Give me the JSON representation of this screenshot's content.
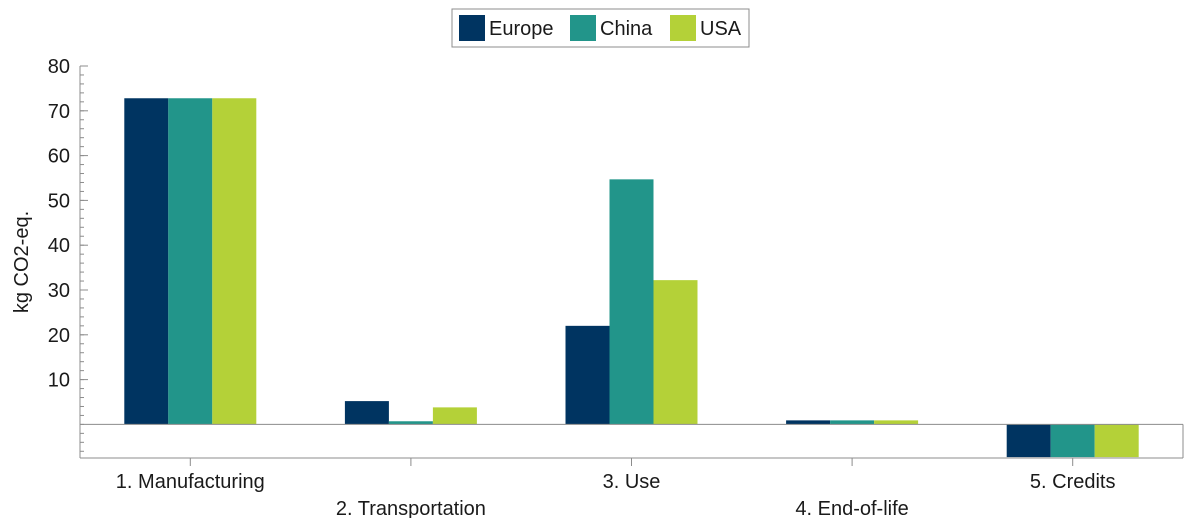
{
  "chart_data": {
    "type": "bar",
    "title": "",
    "xlabel": "",
    "ylabel": "kg CO2-eq.",
    "ylim": [
      -7.5,
      80
    ],
    "yticks": [
      10,
      20,
      30,
      40,
      50,
      60,
      70,
      80
    ],
    "grid": false,
    "legend_position": "top-center",
    "categories": [
      "1. Manufacturing",
      "2. Transportation",
      "3. Use",
      "4. End-of-life",
      "5. Credits"
    ],
    "series": [
      {
        "name": "Europe",
        "color": "#003461",
        "values": [
          72.8,
          5.2,
          22.0,
          0.9,
          -7.3
        ]
      },
      {
        "name": "China",
        "color": "#22958a",
        "values": [
          72.8,
          0.7,
          54.7,
          0.9,
          -7.3
        ]
      },
      {
        "name": "USA",
        "color": "#b4d138",
        "values": [
          72.8,
          3.8,
          32.2,
          0.9,
          -7.3
        ]
      }
    ]
  }
}
